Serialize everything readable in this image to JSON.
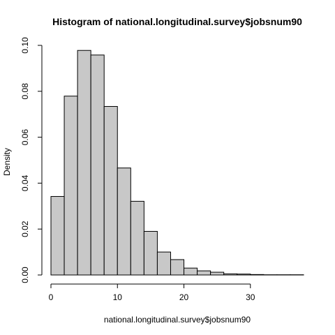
{
  "chart_data": {
    "type": "bar",
    "title": "Histogram of national.longitudinal.survey$jobsnum90",
    "xlabel": "national.longitudinal.survey$jobsnum90",
    "ylabel": "Density",
    "bin_edges": [
      0,
      2,
      4,
      6,
      8,
      10,
      12,
      14,
      16,
      18,
      20,
      22,
      24,
      26,
      28,
      30,
      32,
      34,
      36,
      38
    ],
    "values": [
      0.0342,
      0.0779,
      0.0978,
      0.0958,
      0.0734,
      0.0466,
      0.0321,
      0.019,
      0.01,
      0.0067,
      0.003,
      0.0018,
      0.0012,
      0.0005,
      0.0004,
      0.0002,
      0.0001,
      0.0001,
      0.0001
    ],
    "xlim": [
      0,
      38
    ],
    "ylim": [
      0,
      0.1
    ],
    "x_ticks": [
      0,
      10,
      20,
      30
    ],
    "y_ticks": [
      0,
      0.02,
      0.04,
      0.06,
      0.08,
      0.1
    ],
    "y_tick_labels": [
      "0.00",
      "0.02",
      "0.04",
      "0.06",
      "0.08",
      "0.10"
    ],
    "grid": false,
    "legend": "none"
  }
}
